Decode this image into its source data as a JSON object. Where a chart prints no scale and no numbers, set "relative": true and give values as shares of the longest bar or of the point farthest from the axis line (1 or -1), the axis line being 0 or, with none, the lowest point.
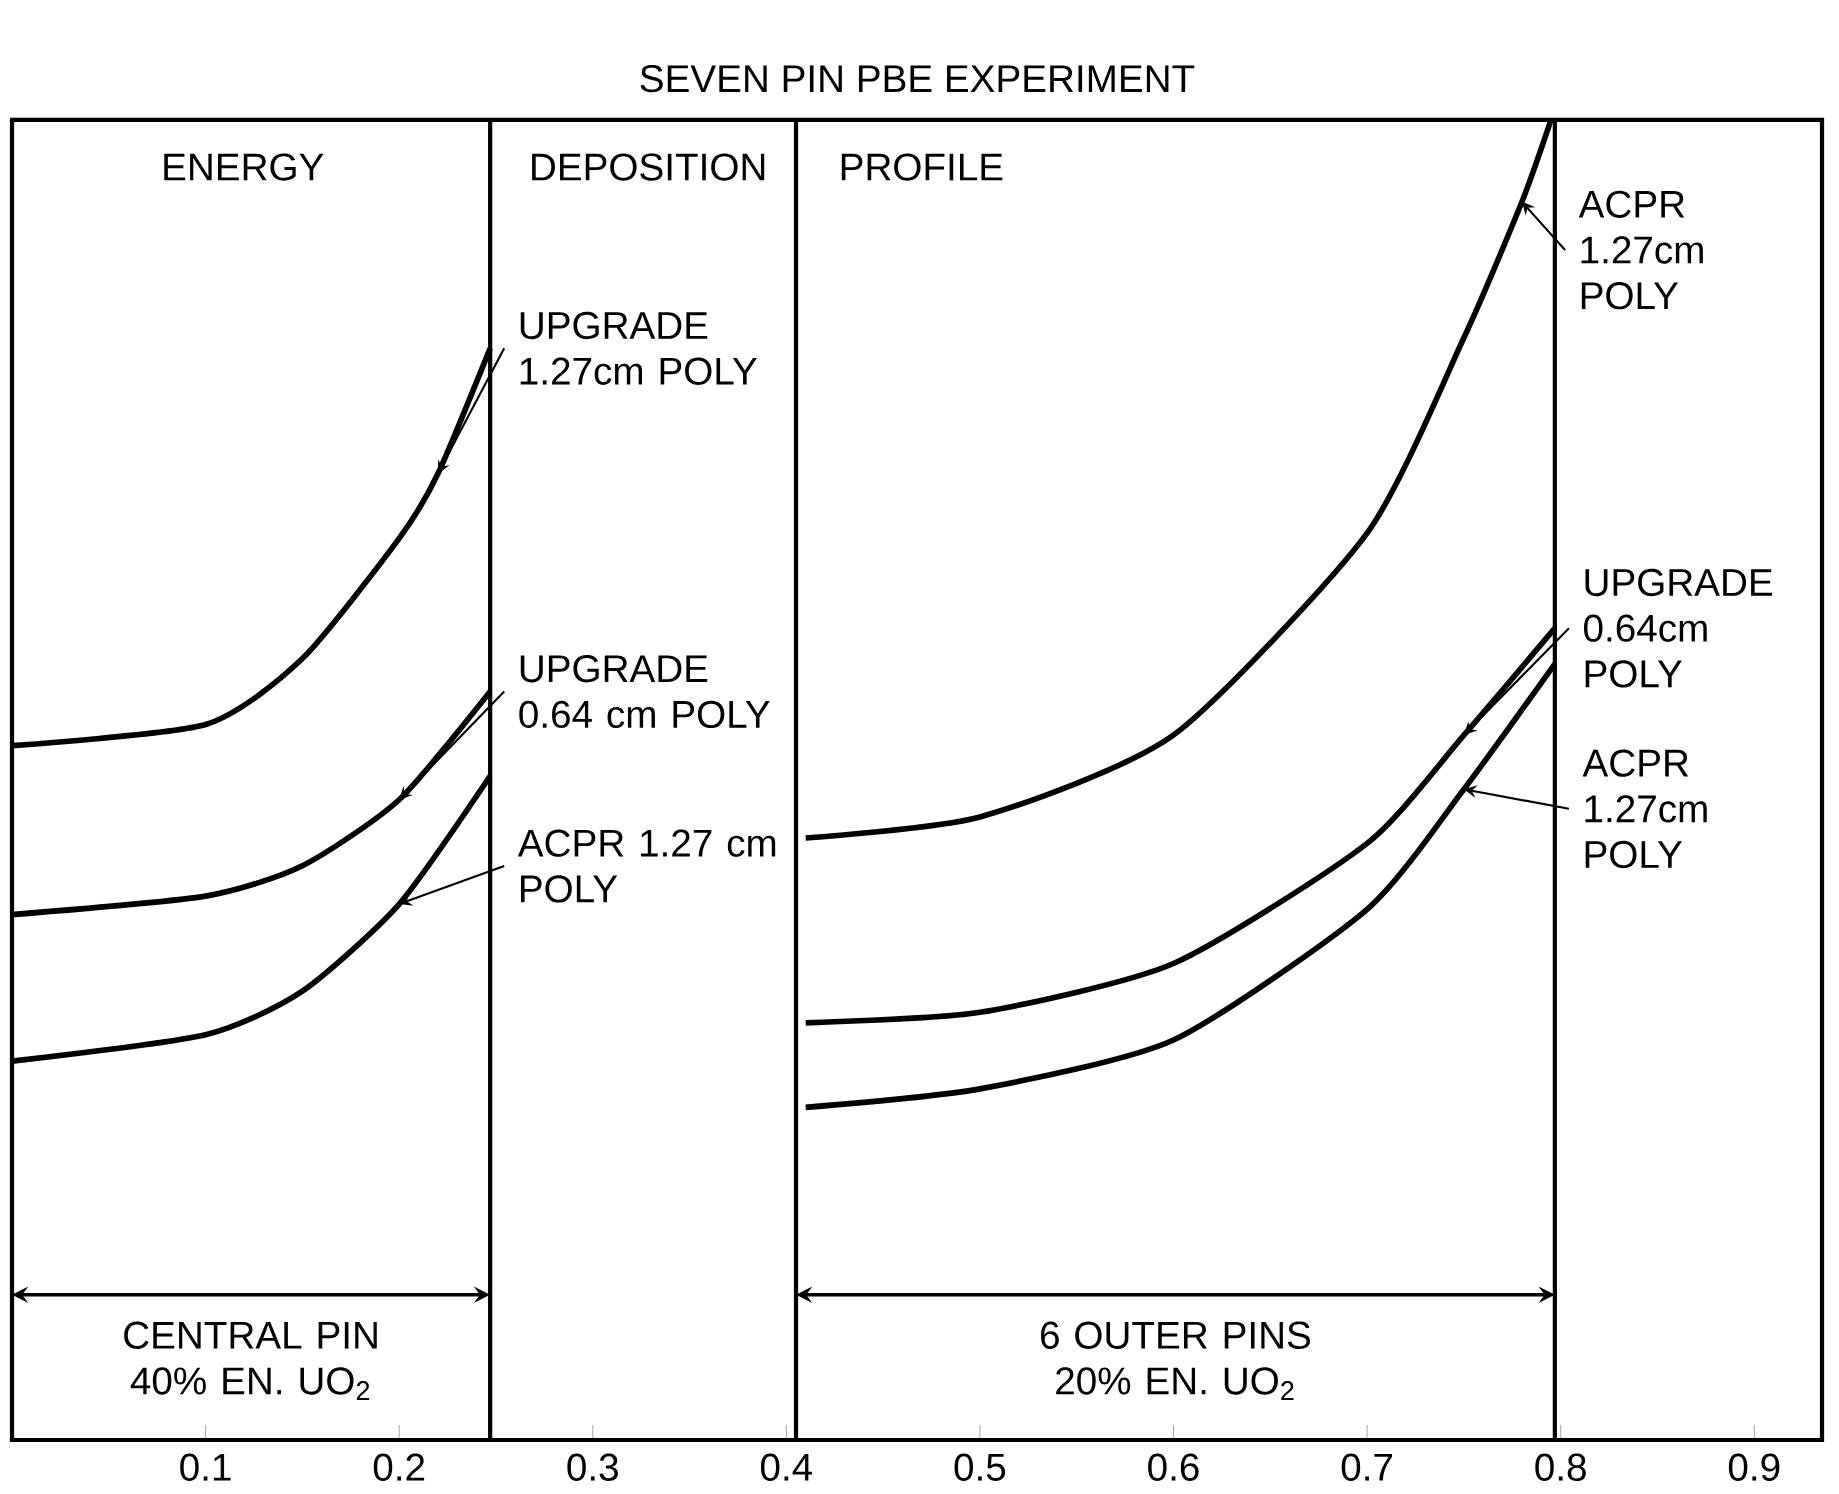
{
  "chart_data": {
    "type": "line",
    "title": "SEVEN PIN PBE EXPERIMENT",
    "annotations": [
      "ENERGY",
      "DEPOSITION",
      "PROFILE",
      "CENTRAL PIN 40% EN. UO$_{2}$",
      "6 OUTER PINS 20% EN. UO$_{2}$"
    ],
    "relative": true,
    "legend": "right",
    "xlim": [
      0,
      0.935
    ],
    "xticks": [
      0.1,
      0.2,
      0.3,
      0.4,
      0.5,
      0.6,
      0.7,
      0.8,
      0.9
    ],
    "ref_lines": [
      {
        "axis": "x",
        "value": 0.247
      },
      {
        "axis": "x",
        "value": 0.405
      },
      {
        "axis": "x",
        "value": 0.797
      }
    ],
    "series": [
      {
        "name": "UPGRADE 1.27cm POLY",
        "color": "#000000",
        "x": [
          0,
          0.1,
          0.15,
          0.2,
          0.22,
          0.247
        ],
        "values": [
          0.526,
          0.542,
          0.592,
          0.683,
          0.732,
          0.827
        ]
      },
      {
        "name": "UPGRADE 0.64 cm POLY",
        "color": "#000000",
        "x": [
          0,
          0.1,
          0.15,
          0.2,
          0.247
        ],
        "values": [
          0.398,
          0.412,
          0.435,
          0.485,
          0.567
        ]
      },
      {
        "name": "ACPR 1.27 cm POLY",
        "color": "#000000",
        "x": [
          0,
          0.1,
          0.15,
          0.2,
          0.247
        ],
        "values": [
          0.287,
          0.307,
          0.34,
          0.406,
          0.503
        ]
      },
      {
        "name": "ACPR 1.27cm POLY",
        "color": "#000000",
        "x": [
          0.41,
          0.5,
          0.6,
          0.7,
          0.75,
          0.78,
          0.795
        ],
        "values": [
          0.456,
          0.472,
          0.534,
          0.687,
          0.835,
          0.938,
          1
        ]
      },
      {
        "name": "UPGRADE 0.64cm POLY",
        "color": "#000000",
        "x": [
          0.41,
          0.5,
          0.6,
          0.7,
          0.75,
          0.797
        ],
        "values": [
          0.316,
          0.324,
          0.361,
          0.452,
          0.534,
          0.615
        ]
      },
      {
        "name": "ACPR 1.27cm POLY",
        "color": "#000000",
        "x": [
          0.41,
          0.5,
          0.6,
          0.7,
          0.75,
          0.797
        ],
        "values": [
          0.252,
          0.266,
          0.303,
          0.402,
          0.493,
          0.588
        ]
      }
    ]
  }
}
